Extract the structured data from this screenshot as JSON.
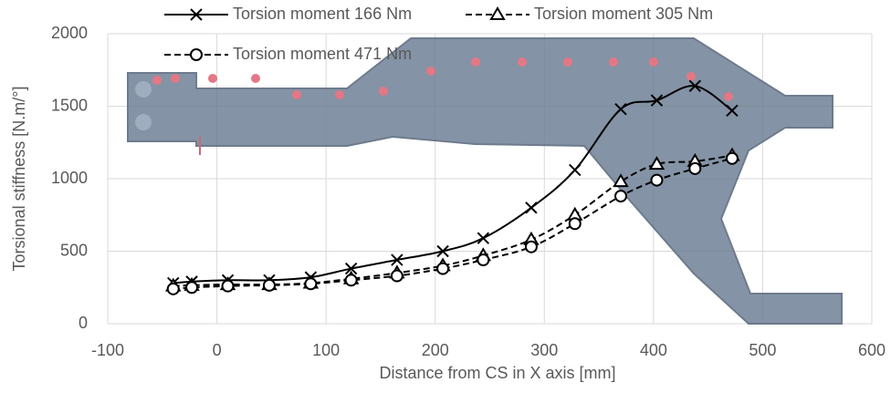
{
  "chart_data": {
    "type": "line",
    "x_label": "Distance from CS in X axis [mm]",
    "y_label": "Torsional stiffness [N.m/°]",
    "x": [
      -40,
      -23,
      10,
      48,
      86,
      123,
      165,
      207,
      244,
      288,
      328,
      370,
      403,
      438,
      472
    ],
    "series": [
      {
        "name": "Torsion moment 166 Nm",
        "color": "#000000",
        "dash": "solid",
        "marker": "x",
        "values": [
          280,
          290,
          300,
          300,
          320,
          380,
          440,
          500,
          590,
          800,
          1060,
          1480,
          1540,
          1640,
          1470
        ]
      },
      {
        "name": "Torsion moment 305 Nm",
        "color": "#000000",
        "dash": "dashed",
        "marker": "triangle",
        "values": [
          260,
          265,
          270,
          270,
          280,
          310,
          350,
          400,
          470,
          580,
          750,
          980,
          1100,
          1120,
          1160
        ]
      },
      {
        "name": "Torsion moment 471 Nm",
        "color": "#000000",
        "dash": "dashed",
        "marker": "circle",
        "values": [
          240,
          250,
          260,
          265,
          275,
          300,
          330,
          380,
          440,
          530,
          690,
          880,
          990,
          1070,
          1140
        ]
      }
    ],
    "xlim": [
      -100,
      600
    ],
    "xticks": [
      -100,
      0,
      100,
      200,
      300,
      400,
      500,
      600
    ],
    "ylim": [
      0,
      2000
    ],
    "yticks": [
      0,
      500,
      1000,
      1500,
      2000
    ],
    "grid": true
  }
}
